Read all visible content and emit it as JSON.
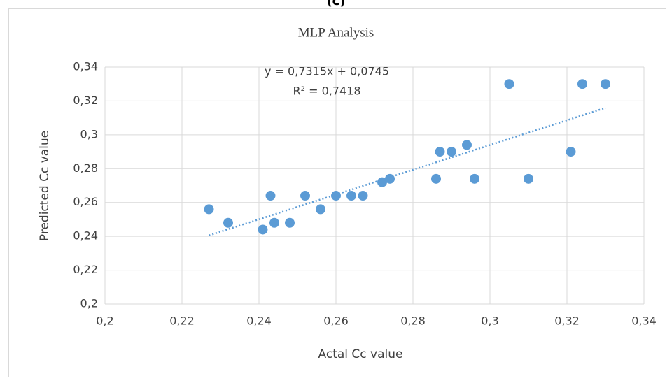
{
  "chart_data": {
    "type": "scatter",
    "panel_label": "(c)",
    "title": "MLP Analysis",
    "x_label": "Actal Cc value",
    "y_label": "Predicted Cc value",
    "series": [
      {
        "color": "#5b9bd5",
        "x": [
          0.227,
          0.232,
          0.241,
          0.243,
          0.244,
          0.248,
          0.252,
          0.256,
          0.26,
          0.264,
          0.267,
          0.272,
          0.274,
          0.286,
          0.287,
          0.29,
          0.294,
          0.296,
          0.305,
          0.31,
          0.321,
          0.324,
          0.33
        ],
        "values": [
          0.256,
          0.248,
          0.244,
          0.264,
          0.248,
          0.248,
          0.264,
          0.256,
          0.264,
          0.264,
          0.264,
          0.272,
          0.274,
          0.274,
          0.29,
          0.29,
          0.294,
          0.274,
          0.33,
          0.274,
          0.29,
          0.33,
          0.33
        ]
      }
    ],
    "trendline": {
      "slope": 0.7315,
      "intercept": 0.0745,
      "equation": "y = 0,7315x + 0,0745",
      "r2_label": "R² = 0,7418"
    },
    "xlim": [
      0.2,
      0.34
    ],
    "xticks": [
      {
        "value": 0.2,
        "label": "0,2"
      },
      {
        "value": 0.22,
        "label": "0,22"
      },
      {
        "value": 0.24,
        "label": "0,24"
      },
      {
        "value": 0.26,
        "label": "0,26"
      },
      {
        "value": 0.28,
        "label": "0,28"
      },
      {
        "value": 0.3,
        "label": "0,3"
      },
      {
        "value": 0.32,
        "label": "0,32"
      },
      {
        "value": 0.34,
        "label": "0,34"
      }
    ],
    "ylim": [
      0.2,
      0.34
    ],
    "yticks": [
      {
        "value": 0.2,
        "label": "0,2"
      },
      {
        "value": 0.22,
        "label": "0,22"
      },
      {
        "value": 0.24,
        "label": "0,24"
      },
      {
        "value": 0.26,
        "label": "0,26"
      },
      {
        "value": 0.28,
        "label": "0,28"
      },
      {
        "value": 0.3,
        "label": "0,3"
      },
      {
        "value": 0.32,
        "label": "0,32"
      },
      {
        "value": 0.34,
        "label": "0,34"
      }
    ],
    "grid": true
  }
}
